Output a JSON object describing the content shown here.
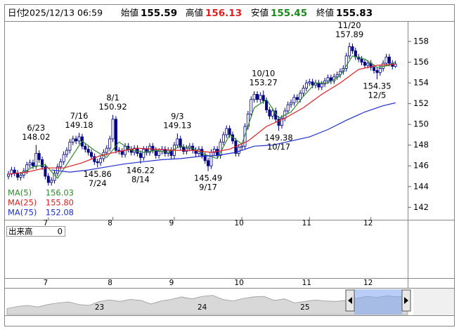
{
  "header": {
    "date_label": "日付",
    "date": "2025/12/13 06:59",
    "labels": [
      "始値",
      "高値",
      "安値",
      "終値"
    ]
  },
  "chart_data": {
    "type": "candlestick",
    "ylim": [
      140.8,
      159.9
    ],
    "yticks": [
      142,
      144,
      146,
      148,
      150,
      152,
      154,
      156,
      158
    ],
    "grid": false,
    "up_color": "#ffffff",
    "down_color": "#000080",
    "edge_color": "#000080",
    "categories": [
      null,
      null,
      null,
      null,
      null,
      null,
      null,
      null,
      null,
      null,
      null,
      null,
      null,
      "7",
      null,
      null,
      null,
      null,
      null,
      null,
      null,
      null,
      null,
      null,
      null,
      null,
      null,
      null,
      null,
      null,
      null,
      null,
      null,
      null,
      "8",
      null,
      null,
      null,
      null,
      null,
      null,
      null,
      null,
      null,
      null,
      null,
      null,
      null,
      null,
      null,
      null,
      null,
      null,
      null,
      "9",
      null,
      null,
      null,
      null,
      null,
      null,
      null,
      null,
      null,
      null,
      null,
      null,
      null,
      null,
      null,
      null,
      null,
      null,
      null,
      null,
      null,
      "10",
      null,
      null,
      null,
      null,
      null,
      null,
      null,
      null,
      null,
      null,
      null,
      null,
      null,
      null,
      null,
      null,
      null,
      null,
      null,
      null,
      null,
      "11",
      null,
      null,
      null,
      null,
      null,
      null,
      null,
      null,
      null,
      null,
      null,
      null,
      null,
      null,
      null,
      null,
      null,
      null,
      null,
      "12",
      null,
      null,
      null,
      null,
      null,
      null,
      null,
      null
    ],
    "open": [
      145.0,
      145.2,
      145.6,
      145.3,
      144.9,
      145.1,
      145.5,
      146.1,
      146.3,
      146.0,
      147.2,
      146.6,
      145.9,
      145.0,
      144.4,
      144.6,
      145.3,
      145.9,
      146.4,
      147.1,
      147.5,
      148.3,
      148.6,
      148.4,
      148.8,
      147.9,
      147.6,
      147.3,
      146.9,
      146.4,
      146.3,
      146.7,
      147.3,
      147.7,
      148.6,
      150.5,
      147.5,
      147.4,
      147.1,
      147.9,
      147.6,
      147.3,
      147.7,
      147.2,
      146.8,
      147.6,
      147.3,
      147.9,
      147.5,
      147.0,
      147.4,
      147.6,
      147.2,
      147.5,
      147.0,
      148.0,
      148.6,
      147.8,
      147.4,
      147.7,
      147.9,
      147.5,
      147.2,
      147.6,
      147.0,
      146.5,
      146.0,
      147.3,
      147.6,
      147.0,
      148.3,
      149.0,
      149.6,
      149.0,
      148.4,
      147.2,
      147.8,
      147.9,
      149.8,
      151.0,
      152.4,
      152.9,
      152.4,
      152.8,
      152.3,
      151.4,
      150.8,
      151.3,
      150.5,
      149.9,
      150.6,
      151.3,
      151.9,
      152.1,
      152.6,
      152.4,
      153.0,
      153.5,
      154.0,
      154.1,
      153.8,
      154.0,
      153.6,
      153.9,
      154.2,
      154.5,
      154.2,
      154.6,
      154.8,
      155.1,
      155.4,
      156.6,
      157.5,
      157.1,
      156.5,
      156.3,
      156.0,
      155.7,
      155.9,
      155.5,
      155.2,
      155.0,
      155.4,
      155.9,
      156.5,
      155.9,
      155.59
    ],
    "high": [
      145.5,
      145.9,
      145.9,
      145.6,
      145.4,
      145.8,
      146.4,
      146.6,
      146.6,
      148.02,
      147.5,
      146.9,
      146.2,
      145.3,
      144.9,
      145.6,
      146.2,
      146.7,
      147.4,
      147.8,
      148.6,
      148.9,
      148.9,
      149.18,
      149.1,
      148.2,
      147.9,
      147.6,
      147.2,
      146.7,
      147.0,
      147.6,
      148.0,
      148.9,
      150.92,
      150.8,
      147.8,
      147.7,
      148.2,
      148.2,
      147.9,
      148.0,
      148.0,
      147.5,
      147.9,
      147.9,
      148.2,
      148.2,
      147.8,
      147.7,
      147.9,
      147.9,
      147.8,
      147.8,
      148.3,
      149.13,
      148.9,
      148.1,
      148.0,
      148.2,
      148.2,
      147.8,
      147.9,
      147.9,
      147.3,
      146.8,
      147.6,
      147.9,
      147.9,
      148.6,
      149.3,
      149.9,
      149.9,
      149.3,
      148.7,
      148.1,
      148.2,
      150.1,
      151.3,
      152.7,
      153.2,
      153.2,
      153.1,
      153.27,
      152.6,
      151.7,
      151.6,
      151.6,
      150.8,
      150.9,
      151.6,
      152.2,
      152.4,
      152.9,
      152.9,
      153.3,
      153.8,
      154.3,
      154.4,
      154.4,
      154.3,
      154.3,
      154.2,
      154.5,
      154.8,
      154.8,
      154.9,
      155.1,
      155.4,
      155.7,
      156.9,
      157.89,
      157.8,
      157.4,
      156.8,
      156.6,
      156.3,
      156.2,
      156.2,
      155.8,
      155.5,
      155.7,
      156.2,
      156.8,
      156.8,
      156.2,
      156.13
    ],
    "low": [
      144.7,
      144.9,
      145.0,
      144.6,
      144.6,
      144.8,
      145.2,
      145.8,
      145.7,
      145.7,
      146.3,
      145.6,
      144.7,
      144.1,
      144.1,
      144.3,
      145.0,
      145.6,
      146.1,
      146.8,
      147.2,
      148.0,
      148.1,
      148.1,
      147.6,
      147.3,
      147.0,
      146.6,
      146.1,
      145.86,
      146.0,
      146.4,
      147.0,
      147.4,
      148.3,
      147.2,
      147.1,
      146.8,
      146.8,
      147.3,
      147.0,
      147.0,
      146.9,
      146.22,
      146.5,
      147.0,
      147.0,
      147.2,
      146.7,
      146.7,
      147.1,
      146.9,
      146.9,
      146.7,
      146.7,
      147.7,
      147.5,
      147.1,
      147.1,
      147.4,
      147.2,
      146.9,
      146.9,
      146.7,
      146.2,
      145.49,
      145.7,
      147.0,
      146.7,
      146.7,
      148.0,
      148.7,
      148.7,
      148.1,
      146.9,
      146.9,
      147.5,
      147.6,
      149.5,
      150.7,
      152.1,
      152.1,
      152.1,
      152.0,
      151.1,
      150.5,
      150.5,
      150.2,
      149.38,
      149.6,
      150.3,
      151.0,
      151.6,
      151.8,
      152.1,
      152.1,
      152.7,
      153.2,
      153.7,
      153.5,
      153.5,
      153.3,
      153.3,
      153.6,
      153.9,
      153.9,
      153.9,
      154.3,
      154.5,
      154.8,
      155.1,
      156.3,
      156.8,
      156.2,
      156.0,
      155.7,
      155.4,
      155.4,
      155.2,
      154.9,
      154.35,
      154.7,
      155.1,
      155.6,
      155.6,
      155.3,
      155.45
    ],
    "close": [
      145.2,
      145.6,
      145.3,
      144.9,
      145.1,
      145.5,
      146.1,
      146.3,
      146.0,
      147.2,
      146.6,
      145.9,
      145.0,
      144.4,
      144.6,
      145.3,
      145.9,
      146.4,
      147.1,
      147.5,
      148.3,
      148.6,
      148.4,
      148.8,
      147.9,
      147.6,
      147.3,
      146.9,
      146.4,
      146.3,
      146.7,
      147.3,
      147.7,
      148.6,
      150.5,
      147.5,
      147.4,
      147.1,
      147.9,
      147.6,
      147.3,
      147.7,
      147.2,
      146.8,
      147.6,
      147.3,
      147.9,
      147.5,
      147.0,
      147.4,
      147.6,
      147.2,
      147.5,
      147.0,
      148.0,
      148.6,
      147.8,
      147.4,
      147.7,
      147.9,
      147.5,
      147.2,
      147.6,
      147.0,
      146.5,
      146.0,
      147.3,
      147.6,
      147.0,
      148.3,
      149.0,
      149.6,
      149.0,
      148.4,
      147.2,
      147.8,
      147.9,
      149.8,
      151.0,
      152.4,
      152.9,
      152.4,
      152.8,
      152.3,
      151.4,
      150.8,
      151.3,
      150.5,
      149.9,
      150.6,
      151.3,
      151.9,
      152.1,
      152.6,
      152.4,
      153.0,
      153.5,
      154.0,
      154.1,
      153.8,
      154.0,
      153.6,
      153.9,
      154.2,
      154.5,
      154.2,
      154.6,
      154.8,
      155.1,
      155.4,
      156.6,
      157.5,
      157.1,
      156.5,
      156.3,
      156.0,
      155.7,
      155.9,
      155.5,
      155.2,
      155.0,
      155.4,
      155.9,
      156.5,
      155.9,
      155.6,
      155.83
    ],
    "series": [
      {
        "name": "MA(5)",
        "color": "#2e8b2e",
        "x": [
          4,
          8,
          12,
          16,
          20,
          24,
          28,
          32,
          36,
          40,
          44,
          48,
          52,
          56,
          60,
          64,
          68,
          72,
          76,
          80,
          84,
          88,
          92,
          96,
          100,
          104,
          108,
          112,
          116,
          120,
          124,
          126
        ],
        "values": [
          145.2,
          145.9,
          146.1,
          144.8,
          146.6,
          148.4,
          147.5,
          146.8,
          148.3,
          147.5,
          147.3,
          147.5,
          147.3,
          147.9,
          147.7,
          147.1,
          146.7,
          149.0,
          148.1,
          151.6,
          152.4,
          150.6,
          151.2,
          152.7,
          154.0,
          154.0,
          154.7,
          156.6,
          156.3,
          155.5,
          155.7,
          156.03
        ],
        "value_labels": [
          null,
          null,
          null,
          null,
          null,
          null,
          null,
          null,
          null,
          null,
          null,
          null,
          null,
          null,
          null,
          null,
          null,
          null,
          null,
          null,
          null,
          null,
          null,
          null,
          null,
          null,
          null,
          null,
          null,
          null,
          null,
          "156.03"
        ]
      },
      {
        "name": "MA(25)",
        "color": "#e02020",
        "x": [
          0,
          6,
          12,
          18,
          24,
          30,
          36,
          42,
          48,
          54,
          60,
          66,
          72,
          78,
          84,
          90,
          96,
          102,
          108,
          114,
          120,
          126
        ],
        "values": [
          145.2,
          145.4,
          145.8,
          145.8,
          146.3,
          147.0,
          147.4,
          147.7,
          147.6,
          147.5,
          147.5,
          147.3,
          147.6,
          148.4,
          149.8,
          150.6,
          151.6,
          152.9,
          154.0,
          155.3,
          155.7,
          155.8
        ],
        "value_labels": [
          null,
          null,
          null,
          null,
          null,
          null,
          null,
          null,
          null,
          null,
          null,
          null,
          null,
          null,
          null,
          null,
          null,
          null,
          null,
          null,
          null,
          "155.80"
        ]
      },
      {
        "name": "MA(75)",
        "color": "#2030d0",
        "x": [
          14,
          20,
          26,
          32,
          38,
          44,
          50,
          56,
          62,
          68,
          74,
          80,
          86,
          92,
          98,
          104,
          110,
          116,
          122,
          126
        ],
        "values": [
          145.6,
          145.4,
          145.6,
          145.9,
          146.2,
          146.4,
          146.6,
          146.7,
          146.9,
          147.0,
          147.3,
          147.9,
          148.0,
          148.4,
          148.8,
          149.5,
          150.4,
          151.2,
          151.8,
          152.08
        ],
        "value_labels": [
          null,
          null,
          null,
          null,
          null,
          null,
          null,
          null,
          null,
          null,
          null,
          null,
          null,
          null,
          null,
          null,
          null,
          null,
          null,
          "152.08"
        ]
      }
    ],
    "annotations": [
      {
        "date": "6/23",
        "value": 148.02
      },
      {
        "date": "7/16",
        "value": 149.18
      },
      {
        "date": "7/24",
        "value": 145.86
      },
      {
        "date": "8/1",
        "value": 150.92
      },
      {
        "date": "8/14",
        "value": 146.22
      },
      {
        "date": "9/3",
        "value": 149.13
      },
      {
        "date": "9/17",
        "value": 145.49
      },
      {
        "date": "10/10",
        "value": 153.27
      },
      {
        "date": "10/17",
        "value": 149.38
      },
      {
        "date": "11/20",
        "value": 157.89
      },
      {
        "date": "12/5",
        "value": 154.35
      }
    ]
  },
  "volume_pane": {
    "label": "出来高",
    "value": 0
  },
  "navigator": {
    "ylim": [
      120,
      170
    ],
    "categories": [
      null,
      null,
      null,
      null,
      null,
      null,
      null,
      null,
      null,
      "23",
      null,
      null,
      null,
      null,
      null,
      null,
      null,
      null,
      null,
      "24",
      null,
      null,
      null,
      null,
      null,
      null,
      null,
      null,
      null,
      "25",
      null,
      null,
      null,
      null,
      null,
      null,
      null,
      null,
      null,
      null
    ],
    "values": [
      132,
      136,
      138,
      135,
      140,
      143,
      145,
      140,
      138,
      146,
      149,
      146,
      150,
      148,
      141,
      147,
      150,
      155,
      151,
      156,
      158,
      150,
      147,
      152,
      155,
      156,
      148,
      151,
      143,
      146,
      149,
      147,
      146,
      148,
      152,
      156,
      154,
      157,
      155,
      156
    ]
  }
}
